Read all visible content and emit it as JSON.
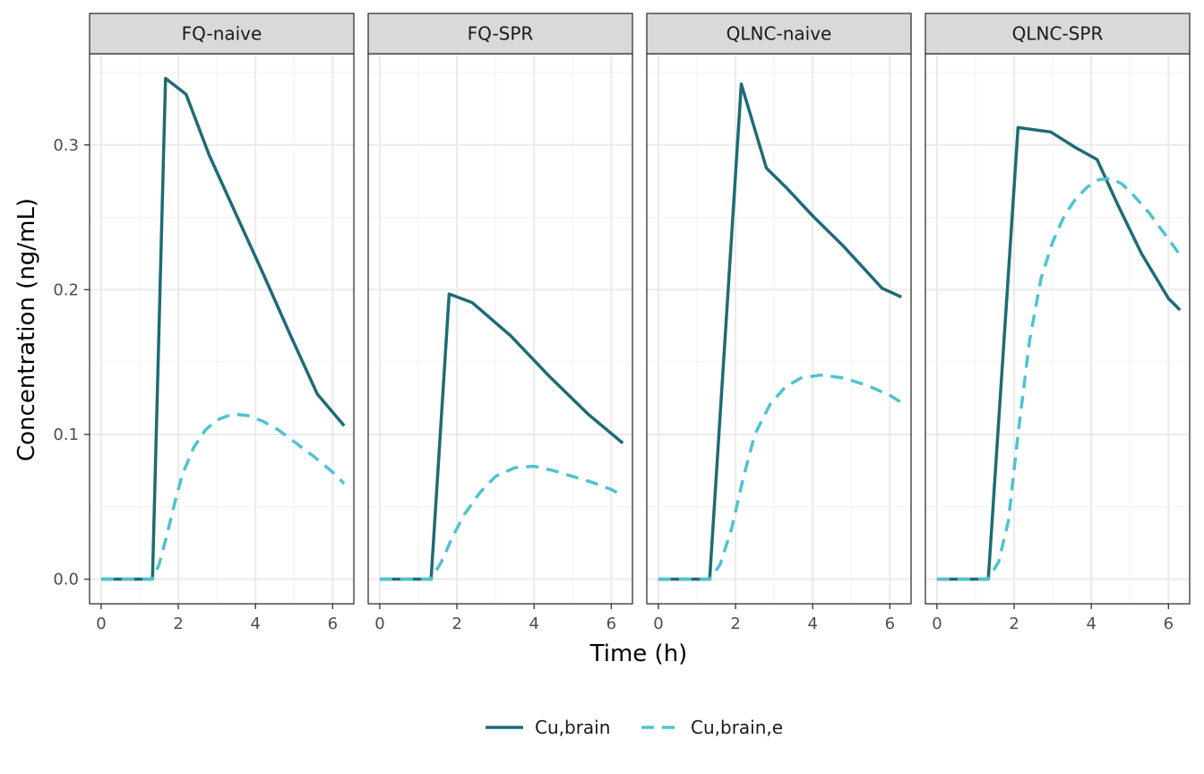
{
  "chart_data": {
    "type": "line",
    "xlabel": "Time (h)",
    "ylabel": "Concentration (ng/mL)",
    "xlim": [
      -0.3,
      6.55
    ],
    "ylim": [
      -0.017,
      0.363
    ],
    "x_ticks": [
      0,
      2,
      4,
      6
    ],
    "x_tick_labels": [
      "0",
      "2",
      "4",
      "6"
    ],
    "y_ticks": [
      0.0,
      0.1,
      0.2,
      0.3
    ],
    "y_tick_labels": [
      "0.0",
      "0.1",
      "0.2",
      "0.3"
    ],
    "grid": true,
    "legend_position": "bottom",
    "colors": {
      "solid": "#1f6b75",
      "dashed": "#4fc3d0"
    },
    "legend": [
      {
        "label": "Cu,brain",
        "style": "solid"
      },
      {
        "label": "Cu,brain,e",
        "style": "dashed"
      }
    ],
    "panels": [
      {
        "name": "FQ-naive",
        "series": [
          {
            "name": "Cu,brain",
            "x": [
              0,
              1.33,
              1.67,
              2.2,
              2.8,
              3.5,
              4.2,
              4.9,
              5.6,
              6.3
            ],
            "y": [
              0,
              0,
              0.346,
              0.335,
              0.293,
              0.252,
              0.211,
              0.169,
              0.128,
              0.106
            ]
          },
          {
            "name": "Cu,brain,e",
            "x": [
              0,
              1.33,
              1.5,
              1.7,
              1.9,
              2.1,
              2.4,
              2.7,
              3.0,
              3.4,
              3.8,
              4.2,
              4.6,
              5.0,
              5.5,
              6.0,
              6.3
            ],
            "y": [
              0,
              0,
              0.01,
              0.03,
              0.052,
              0.072,
              0.091,
              0.103,
              0.11,
              0.114,
              0.113,
              0.109,
              0.103,
              0.095,
              0.085,
              0.074,
              0.066
            ]
          }
        ]
      },
      {
        "name": "FQ-SPR",
        "series": [
          {
            "name": "Cu,brain",
            "x": [
              0,
              1.33,
              1.8,
              2.4,
              3.4,
              4.4,
              5.4,
              6.3
            ],
            "y": [
              0,
              0,
              0.197,
              0.191,
              0.168,
              0.14,
              0.114,
              0.094
            ]
          },
          {
            "name": "Cu,brain,e",
            "x": [
              0,
              1.33,
              1.6,
              1.9,
              2.2,
              2.6,
              3.0,
              3.5,
              4.0,
              4.5,
              5.0,
              5.5,
              6.0,
              6.3
            ],
            "y": [
              0,
              0,
              0.012,
              0.03,
              0.045,
              0.06,
              0.071,
              0.077,
              0.078,
              0.075,
              0.071,
              0.067,
              0.062,
              0.058
            ]
          }
        ]
      },
      {
        "name": "QLNC-naive",
        "series": [
          {
            "name": "Cu,brain",
            "x": [
              0,
              1.33,
              2.15,
              2.8,
              3.3,
              4.0,
              4.8,
              5.8,
              6.3
            ],
            "y": [
              0,
              0,
              0.342,
              0.284,
              0.271,
              0.251,
              0.23,
              0.201,
              0.195
            ]
          },
          {
            "name": "Cu,brain,e",
            "x": [
              0,
              1.33,
              1.6,
              1.9,
              2.2,
              2.5,
              2.9,
              3.3,
              3.7,
              4.2,
              4.8,
              5.4,
              6.0,
              6.3
            ],
            "y": [
              0,
              0,
              0.01,
              0.035,
              0.07,
              0.1,
              0.121,
              0.133,
              0.139,
              0.141,
              0.139,
              0.134,
              0.127,
              0.122
            ]
          }
        ]
      },
      {
        "name": "QLNC-SPR",
        "series": [
          {
            "name": "Cu,brain",
            "x": [
              0,
              1.33,
              2.1,
              2.95,
              3.6,
              4.15,
              4.7,
              5.3,
              6.0,
              6.3
            ],
            "y": [
              0,
              0,
              0.312,
              0.309,
              0.298,
              0.29,
              0.258,
              0.225,
              0.194,
              0.186
            ]
          },
          {
            "name": "Cu,brain,e",
            "x": [
              0,
              1.33,
              1.6,
              1.85,
              2.1,
              2.4,
              2.7,
              3.0,
              3.3,
              3.6,
              3.9,
              4.2,
              4.5,
              4.8,
              5.1,
              5.5,
              6.0,
              6.3
            ],
            "y": [
              0,
              0,
              0.012,
              0.04,
              0.1,
              0.165,
              0.208,
              0.233,
              0.251,
              0.263,
              0.271,
              0.276,
              0.277,
              0.273,
              0.265,
              0.253,
              0.235,
              0.224
            ]
          }
        ]
      }
    ]
  }
}
